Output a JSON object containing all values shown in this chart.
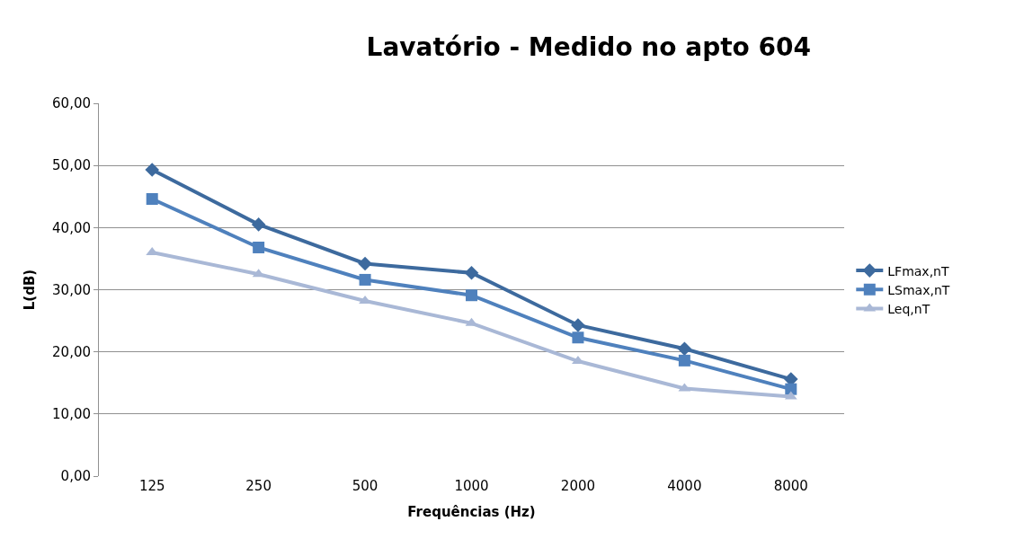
{
  "chart_data": {
    "type": "line",
    "title": "Lavatório - Medido no apto 604",
    "xlabel": "Frequências (Hz)",
    "ylabel": "L(dB)",
    "categories": [
      "125",
      "250",
      "500",
      "1000",
      "2000",
      "4000",
      "8000"
    ],
    "series": [
      {
        "name": "LFmax,nT",
        "color": "#3d6a9e",
        "marker": "diamond",
        "values": [
          49.3,
          40.5,
          34.2,
          32.7,
          24.3,
          20.5,
          15.6
        ]
      },
      {
        "name": "LSmax,nT",
        "color": "#4f81bd",
        "marker": "square",
        "values": [
          44.6,
          36.8,
          31.6,
          29.1,
          22.3,
          18.6,
          14.0
        ]
      },
      {
        "name": "Leq,nT",
        "color": "#a9b8d6",
        "marker": "triangle",
        "values": [
          36.0,
          32.5,
          28.2,
          24.6,
          18.5,
          14.1,
          12.8
        ]
      }
    ],
    "ylim": [
      0,
      60
    ],
    "yticks": [
      {
        "value": 0,
        "label": "0,00"
      },
      {
        "value": 10,
        "label": "10,00"
      },
      {
        "value": 20,
        "label": "20,00"
      },
      {
        "value": 30,
        "label": "30,00"
      },
      {
        "value": 40,
        "label": "40,00"
      },
      {
        "value": 50,
        "label": "50,00"
      },
      {
        "value": 60,
        "label": "60,00"
      }
    ],
    "grid": "y",
    "legend": "right",
    "line_style": "solid"
  }
}
